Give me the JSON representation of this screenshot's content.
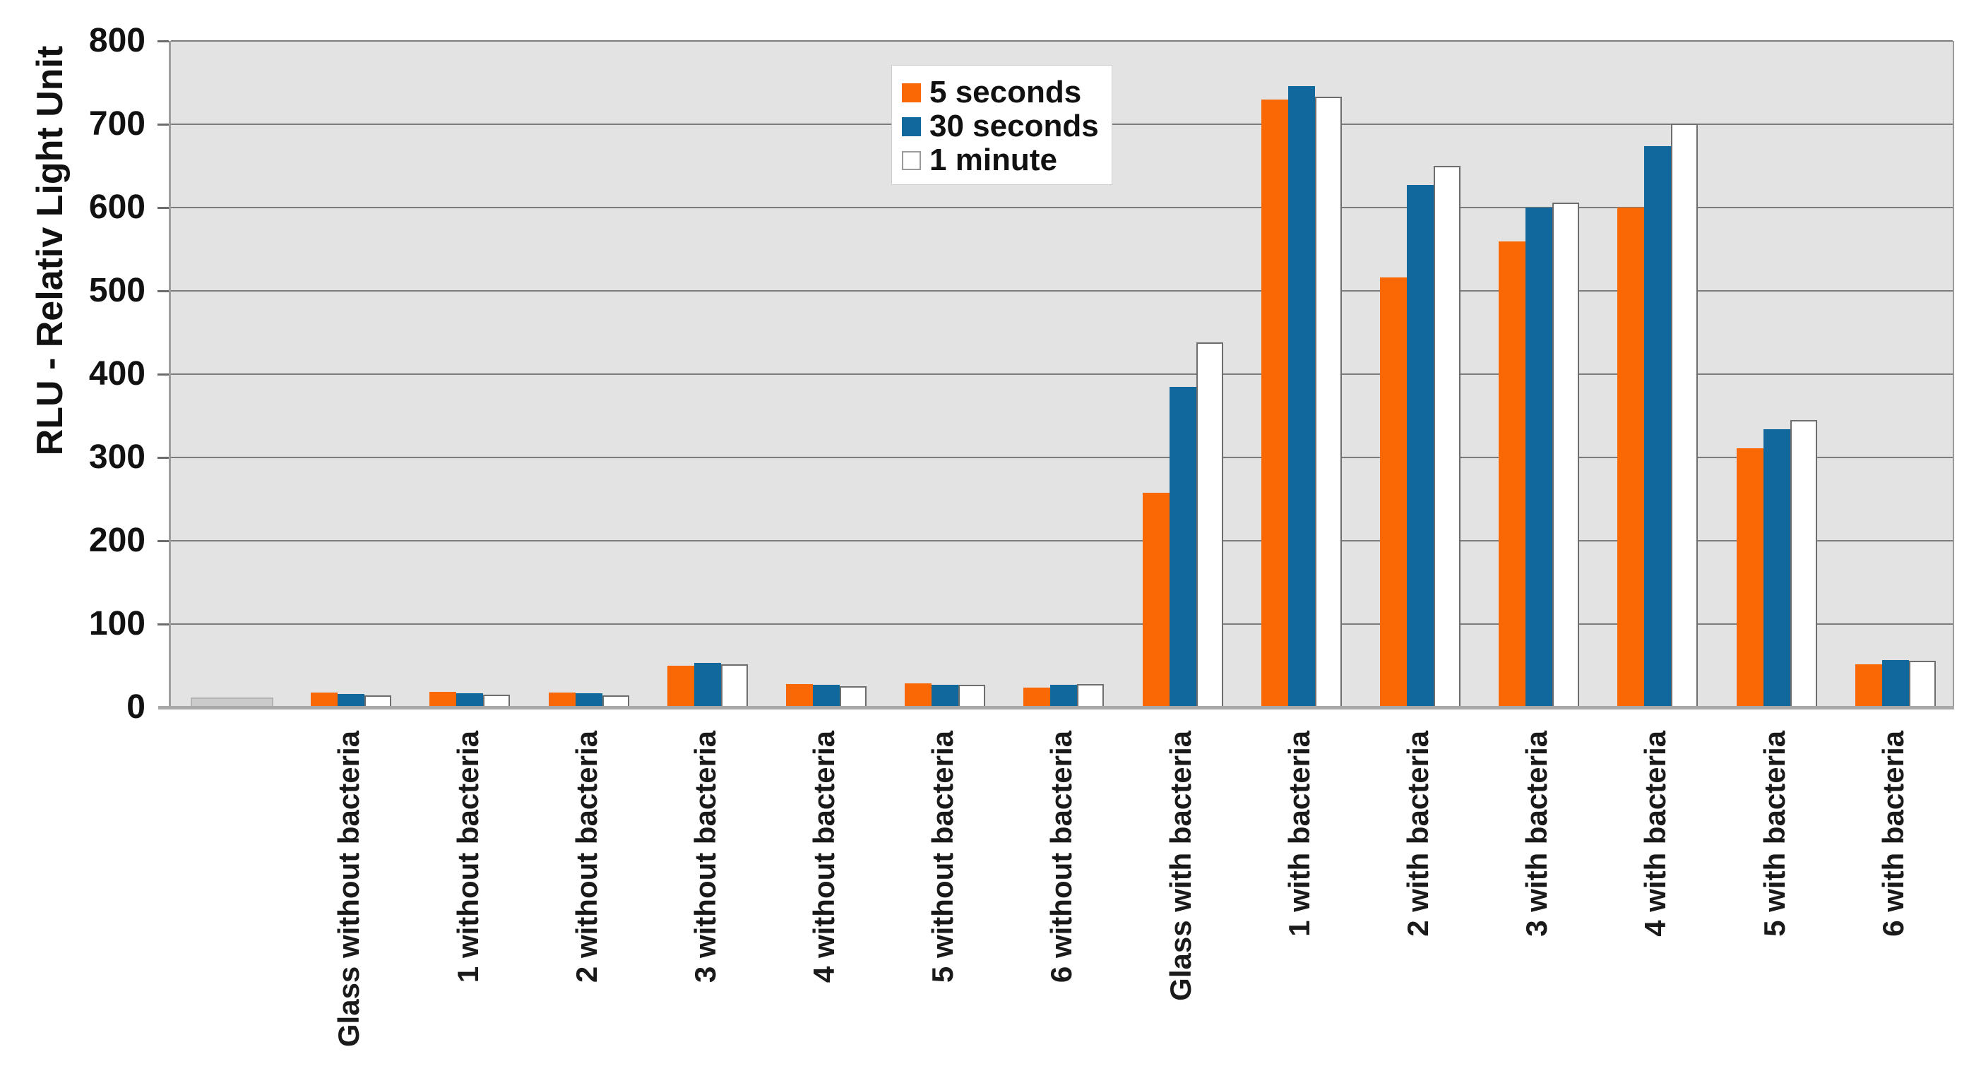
{
  "chart_data": {
    "type": "bar",
    "title": "",
    "ylabel": "RLU - Relativ Light Unit",
    "xlabel": "",
    "ylim": [
      0,
      800
    ],
    "ytick_step": 100,
    "ytick_labels": [
      "0",
      "100",
      "200",
      "300",
      "400",
      "500",
      "600",
      "700",
      "800"
    ],
    "grid": true,
    "legend_position": "top-inside",
    "plot_bg_color": "#E3E3E3",
    "gridline_color": "#7C7C7C",
    "categories": [
      "Glass without bacteria",
      "1 without bacteria",
      "2 without bacteria",
      "3 without bacteria",
      "4 without bacteria",
      "5 without bacteria",
      "6 without bacteria",
      "Glass with bacteria",
      "1 with bacteria",
      "2 with bacteria",
      "3 with bacteria",
      "4 with bacteria",
      "5 with bacteria",
      "6 with bacteria"
    ],
    "series": [
      {
        "name": "5 seconds",
        "color": "#FA6805",
        "values": [
          18,
          19,
          18,
          50,
          28,
          29,
          24,
          258,
          730,
          516,
          559,
          600,
          311,
          52
        ]
      },
      {
        "name": "30 seconds",
        "color": "#10689D",
        "values": [
          16,
          17,
          17,
          53,
          27,
          27,
          27,
          385,
          746,
          627,
          600,
          674,
          334,
          57
        ]
      },
      {
        "name": "1 minute",
        "color": "#FFFFFF",
        "values": [
          14,
          15,
          14,
          52,
          25,
          27,
          28,
          438,
          733,
          650,
          606,
          701,
          345,
          56
        ]
      }
    ],
    "unlabeled_gray_bar": {
      "value": 12,
      "color": "#CBCBCB",
      "position": "first-slot",
      "label": ""
    }
  }
}
